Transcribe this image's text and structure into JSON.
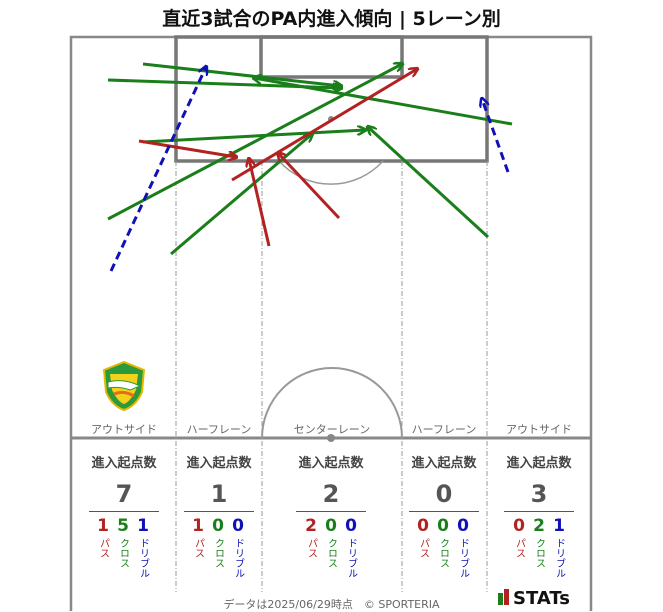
{
  "title": "直近3試合のPA内進入傾向 | 5レーン別",
  "lanes": [
    {
      "label": "アウトサイド",
      "header": "進入起点数",
      "total": "7",
      "pass": "1",
      "cross": "5",
      "dribble": "1"
    },
    {
      "label": "ハーフレーン",
      "header": "進入起点数",
      "total": "1",
      "pass": "1",
      "cross": "0",
      "dribble": "0"
    },
    {
      "label": "センターレーン",
      "header": "進入起点数",
      "total": "2",
      "pass": "2",
      "cross": "0",
      "dribble": "0"
    },
    {
      "label": "ハーフレーン",
      "header": "進入起点数",
      "total": "0",
      "pass": "0",
      "cross": "0",
      "dribble": "0"
    },
    {
      "label": "アウトサイド",
      "header": "進入起点数",
      "total": "3",
      "pass": "0",
      "cross": "2",
      "dribble": "1"
    }
  ],
  "legend": {
    "pass": "パス",
    "cross": "クロス",
    "dribble": "ドリブル"
  },
  "colors": {
    "pass": "#b22222",
    "cross": "#1a7f1a",
    "dribble": "#1010b8",
    "pitch_line": "#777777"
  },
  "footer": "データは2025/06/29時点　© SPORTERIA",
  "logo": "STATs",
  "arrows": [
    {
      "type": "cross",
      "from": [
        512,
        124
      ],
      "to": [
        254,
        78
      ]
    },
    {
      "type": "cross",
      "from": [
        108,
        80
      ],
      "to": [
        341,
        88
      ]
    },
    {
      "type": "cross",
      "from": [
        143,
        64
      ],
      "to": [
        341,
        86
      ]
    },
    {
      "type": "cross",
      "from": [
        108,
        219
      ],
      "to": [
        402,
        64
      ]
    },
    {
      "type": "cross",
      "from": [
        488,
        237
      ],
      "to": [
        368,
        127
      ]
    },
    {
      "type": "cross",
      "from": [
        143,
        142
      ],
      "to": [
        365,
        130
      ]
    },
    {
      "type": "cross",
      "from": [
        171,
        254
      ],
      "to": [
        312,
        134
      ]
    },
    {
      "type": "pass",
      "from": [
        139,
        141
      ],
      "to": [
        236,
        157
      ]
    },
    {
      "type": "pass",
      "from": [
        232,
        180
      ],
      "to": [
        417,
        69
      ]
    },
    {
      "type": "pass",
      "from": [
        269,
        246
      ],
      "to": [
        249,
        159
      ]
    },
    {
      "type": "pass",
      "from": [
        339,
        218
      ],
      "to": [
        278,
        153
      ]
    },
    {
      "type": "dribble",
      "from": [
        111,
        271
      ],
      "to": [
        206,
        67
      ]
    },
    {
      "type": "dribble",
      "from": [
        508,
        172
      ],
      "to": [
        482,
        99
      ]
    }
  ]
}
